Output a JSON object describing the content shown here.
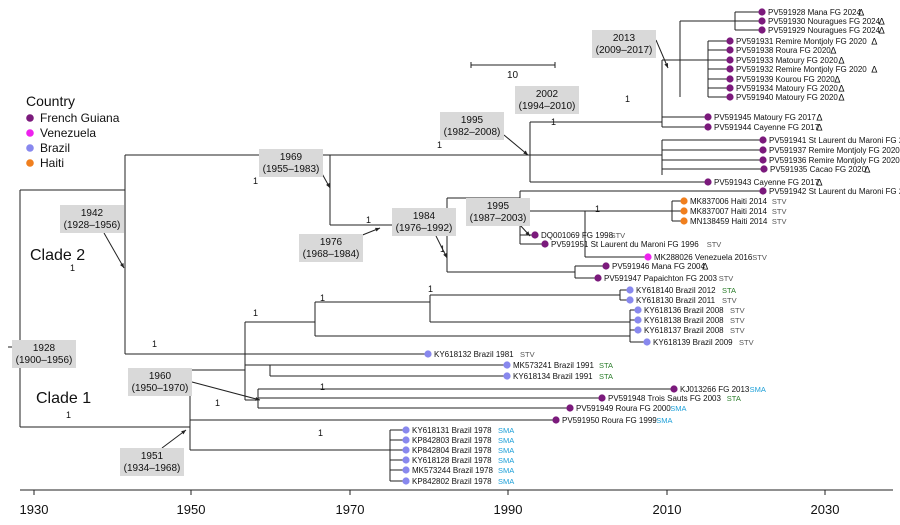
{
  "legend": {
    "title": "Country",
    "items": [
      {
        "label": "French Guiana",
        "color": "#7b1a7c"
      },
      {
        "label": "Venezuela",
        "color": "#ee22ee"
      },
      {
        "label": "Brazil",
        "color": "#8888ee"
      },
      {
        "label": "Haiti",
        "color": "#f07f1e"
      }
    ]
  },
  "country_colors": {
    "FG": "#7b1a7c",
    "VE": "#ee22ee",
    "BR": "#8888ee",
    "HT": "#f07f1e"
  },
  "lineage_colors": {
    "STV": "#555555",
    "STA": "#2a7d2a",
    "SMA": "#1ea0d8"
  },
  "scale_bar": {
    "label": "10"
  },
  "axis": {
    "ticks": [
      "1930",
      "1950",
      "1970",
      "1990",
      "2010",
      "2030"
    ]
  },
  "clades": {
    "clade2": "Clade 2",
    "clade1": "Clade 1"
  },
  "tips": [
    {
      "label": "PV591928 Mana FG 2024",
      "country": "FG",
      "mark": "Δ"
    },
    {
      "label": "PV591930 Nouragues FG 2024",
      "country": "FG",
      "mark": "Δ"
    },
    {
      "label": "PV591929 Nouragues FG 2024",
      "country": "FG",
      "mark": "Δ"
    },
    {
      "label": "PV591931 Remire Montjoly FG 2020",
      "country": "FG",
      "mark": "Δ"
    },
    {
      "label": "PV591938 Roura FG 2020",
      "country": "FG",
      "mark": "Δ"
    },
    {
      "label": "PV591933 Matoury FG 2020",
      "country": "FG",
      "mark": "Δ"
    },
    {
      "label": "PV591932 Remire Montjoly FG 2020",
      "country": "FG",
      "mark": "Δ"
    },
    {
      "label": "PV591939 Kourou FG 2020",
      "country": "FG",
      "mark": "Δ"
    },
    {
      "label": "PV591934 Matoury FG 2020",
      "country": "FG",
      "mark": "Δ"
    },
    {
      "label": "PV591940 Matoury FG 2020",
      "country": "FG",
      "mark": "Δ"
    },
    {
      "label": "PV591945 Matoury FG 2017",
      "country": "FG",
      "mark": "Δ"
    },
    {
      "label": "PV591944 Cayenne FG 2017",
      "country": "FG",
      "mark": "Δ"
    },
    {
      "label": "PV591941 St Laurent du Maroni FG 2019",
      "country": "FG",
      "mark": "Δ"
    },
    {
      "label": "PV591937 Remire Montjoly FG 2020",
      "country": "FG",
      "mark": "Δ"
    },
    {
      "label": "PV591936 Remire Montjoly FG 2020",
      "country": "FG",
      "mark": "Δ"
    },
    {
      "label": "PV591935 Cacao FG 2020",
      "country": "FG",
      "mark": "Δ"
    },
    {
      "label": "PV591943 Cayenne FG 2017",
      "country": "FG",
      "mark": "Δ"
    },
    {
      "label": "PV591942 St Laurent du Maroni FG 2018",
      "country": "FG",
      "lineage": "STV"
    },
    {
      "label": "MK837006 Haiti 2014",
      "country": "HT",
      "lineage": "STV"
    },
    {
      "label": "MK837007 Haiti 2014",
      "country": "HT",
      "lineage": "STV"
    },
    {
      "label": "MN138459 Haiti 2014",
      "country": "HT",
      "lineage": "STV"
    },
    {
      "label": "DQ001069 FG 1998",
      "country": "FG",
      "lineage": "STV"
    },
    {
      "label": "PV591951 St Laurent du Maroni FG 1996",
      "country": "FG",
      "lineage": "STV"
    },
    {
      "label": "MK288026 Venezuela 2016",
      "country": "VE",
      "lineage": "STV"
    },
    {
      "label": "PV591946 Mana FG 2004",
      "country": "FG",
      "mark": "Δ"
    },
    {
      "label": "PV591947 Papaichton FG 2003",
      "country": "FG",
      "lineage": "STV"
    },
    {
      "label": "KY618140 Brazil 2012",
      "country": "BR",
      "lineage": "STA"
    },
    {
      "label": "KY618130 Brazil 2011",
      "country": "BR",
      "lineage": "STV"
    },
    {
      "label": "KY618136 Brazil 2008",
      "country": "BR",
      "lineage": "STV"
    },
    {
      "label": "KY618138 Brazil 2008",
      "country": "BR",
      "lineage": "STV"
    },
    {
      "label": "KY618137 Brazil 2008",
      "country": "BR",
      "lineage": "STV"
    },
    {
      "label": "KY618139 Brazil 2009",
      "country": "BR",
      "lineage": "STV"
    },
    {
      "label": "KY618132 Brazil 1981",
      "country": "BR",
      "lineage": "STV"
    },
    {
      "label": "MK573241 Brazil 1991",
      "country": "BR",
      "lineage": "STA"
    },
    {
      "label": "KY618134 Brazil 1991",
      "country": "BR",
      "lineage": "STA"
    },
    {
      "label": "KJ013266 FG 2013",
      "country": "FG",
      "lineage": "SMA"
    },
    {
      "label": "PV591948 Trois Sauts FG 2003",
      "country": "FG",
      "lineage": "STA"
    },
    {
      "label": "PV591949 Roura FG 2000",
      "country": "FG",
      "lineage": "SMA"
    },
    {
      "label": "PV591950 Roura FG 1999",
      "country": "FG",
      "lineage": "SMA"
    },
    {
      "label": "KY618131 Brazil 1978",
      "country": "BR",
      "lineage": "SMA"
    },
    {
      "label": "KP842803 Brazil 1978",
      "country": "BR",
      "lineage": "SMA"
    },
    {
      "label": "KP842804 Brazil 1978",
      "country": "BR",
      "lineage": "SMA"
    },
    {
      "label": "KY618128 Brazil 1978",
      "country": "BR",
      "lineage": "SMA"
    },
    {
      "label": "MK573244 Brazil 1978",
      "country": "BR",
      "lineage": "SMA"
    },
    {
      "label": "KP842802 Brazil 1978",
      "country": "BR",
      "lineage": "SMA"
    }
  ],
  "date_boxes": [
    {
      "id": "d2013",
      "lines": [
        "2013",
        "(2009–2017)"
      ]
    },
    {
      "id": "d2002",
      "lines": [
        "2002",
        "(1994–2010)"
      ]
    },
    {
      "id": "d1995a",
      "lines": [
        "1995",
        "(1982–2008)"
      ]
    },
    {
      "id": "d1969",
      "lines": [
        "1969",
        "(1955–1983)"
      ]
    },
    {
      "id": "d1942",
      "lines": [
        "1942",
        "(1928–1956)"
      ]
    },
    {
      "id": "d1995b",
      "lines": [
        "1995",
        "(1987–2003)"
      ]
    },
    {
      "id": "d1984",
      "lines": [
        "1984",
        "(1976–1992)"
      ]
    },
    {
      "id": "d1976",
      "lines": [
        "1976",
        "(1968–1984)"
      ]
    },
    {
      "id": "d1928",
      "lines": [
        "1928",
        "(1900–1956)"
      ]
    },
    {
      "id": "d1960",
      "lines": [
        "1960",
        "(1950–1970)"
      ]
    },
    {
      "id": "d1951",
      "lines": [
        "1951",
        "(1934–1968)"
      ]
    }
  ],
  "support": {
    "value": "1"
  }
}
